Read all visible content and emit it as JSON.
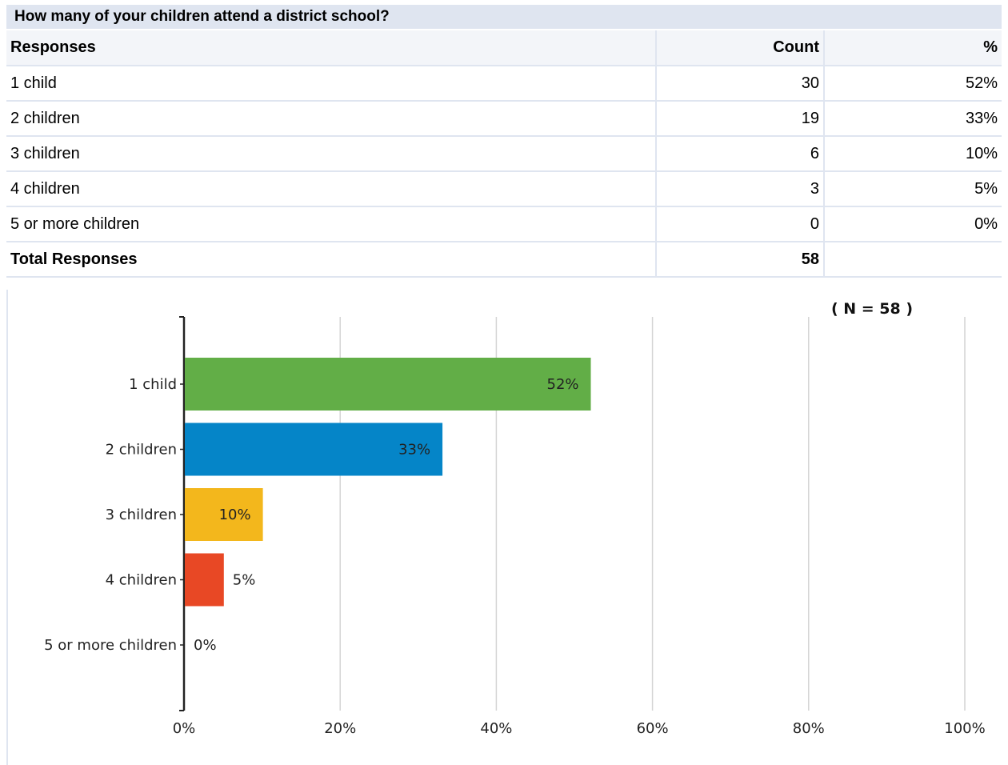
{
  "question": "How many of your children attend a district school?",
  "table": {
    "headers": [
      "Responses",
      "Count",
      "%"
    ],
    "rows": [
      {
        "response": "1 child",
        "count": "30",
        "percent": "52%"
      },
      {
        "response": "2 children",
        "count": "19",
        "percent": "33%"
      },
      {
        "response": "3 children",
        "count": "6",
        "percent": "10%"
      },
      {
        "response": "4 children",
        "count": "3",
        "percent": "5%"
      },
      {
        "response": "5 or more children",
        "count": "0",
        "percent": "0%"
      }
    ],
    "total_label": "Total Responses",
    "total_count": "58"
  },
  "chart_data": {
    "type": "bar",
    "orientation": "horizontal",
    "categories": [
      "1 child",
      "2 children",
      "3 children",
      "4 children",
      "5 or more children"
    ],
    "values": [
      52,
      33,
      10,
      5,
      0
    ],
    "value_labels": [
      "52%",
      "33%",
      "10%",
      "5%",
      "0%"
    ],
    "colors": [
      "#62ae47",
      "#0585c8",
      "#f3b71c",
      "#e84825",
      "#999999"
    ],
    "xlim": [
      0,
      100
    ],
    "xticks": [
      0,
      20,
      40,
      60,
      80,
      100
    ],
    "xtick_labels": [
      "0%",
      "20%",
      "40%",
      "60%",
      "80%",
      "100%"
    ],
    "annotation": "( N = 58 )",
    "grid": true
  }
}
